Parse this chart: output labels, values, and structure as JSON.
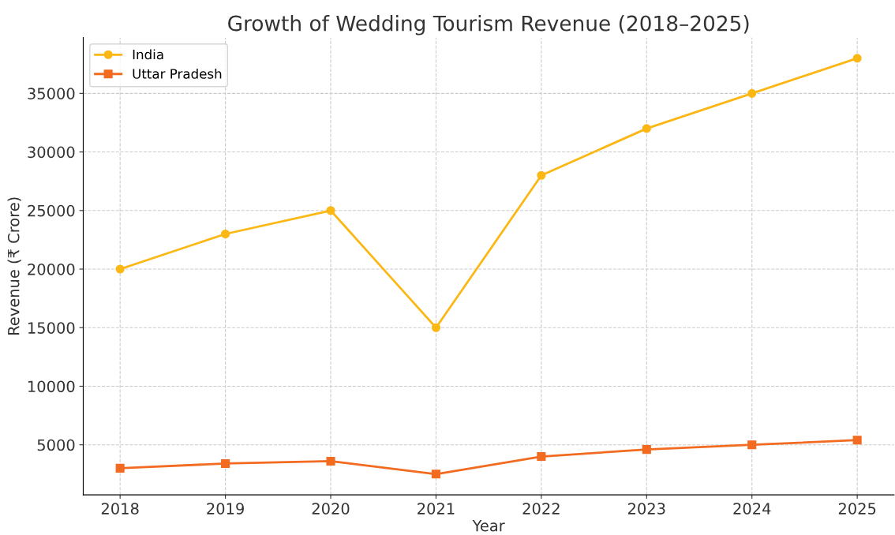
{
  "chart_data": {
    "type": "line",
    "title": "Growth of Wedding Tourism Revenue (2018–2025)",
    "xlabel": "Year",
    "ylabel": "Revenue (₹ Crore)",
    "x": [
      2018,
      2019,
      2020,
      2021,
      2022,
      2023,
      2024,
      2025
    ],
    "series": [
      {
        "name": "India",
        "color": "#fbb714",
        "marker": "circle",
        "values": [
          20000,
          23000,
          25000,
          15000,
          28000,
          32000,
          35000,
          38000
        ]
      },
      {
        "name": "Uttar Pradesh",
        "color": "#f26b21",
        "marker": "square",
        "values": [
          3000,
          3400,
          3600,
          2500,
          4000,
          4600,
          5000,
          5400
        ]
      }
    ],
    "xlim": [
      2017.65,
      2025.35
    ],
    "xticks": [
      2018,
      2019,
      2020,
      2021,
      2022,
      2023,
      2024,
      2025
    ],
    "ylim": [
      725,
      39775
    ],
    "yticks": [
      5000,
      10000,
      15000,
      20000,
      25000,
      30000,
      35000
    ],
    "grid": true,
    "legend": "top left",
    "line_style": "solid"
  }
}
